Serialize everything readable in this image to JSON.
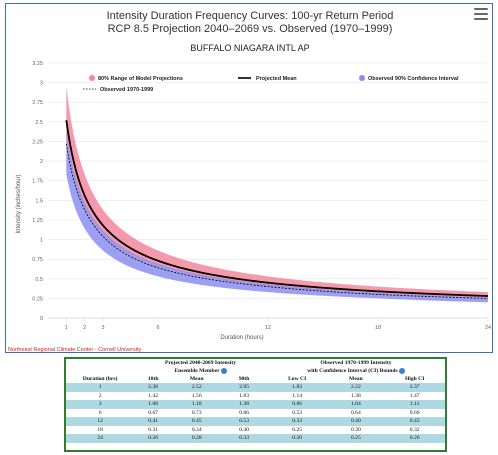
{
  "chart": {
    "title_line1": "Intensity Duration Frequency Curves: 100-yr Return Period",
    "title_line2": "RCP 8.5 Projection 2040–2069 vs. Observed (1970–1999)",
    "subtitle": "BUFFALO NIAGARA INTL AP",
    "credit": "Northeast Regional Climate Center - Cornell University"
  },
  "chart_data": {
    "type": "line",
    "xlabel": "Duration (hours)",
    "ylabel": "Intensity (inches/hour)",
    "xlim": [
      0,
      24
    ],
    "ylim": [
      0,
      3.25
    ],
    "x_ticks": [
      1,
      2,
      3,
      6,
      12,
      18,
      24
    ],
    "y_ticks": [
      0,
      0.25,
      0.5,
      0.75,
      1,
      1.25,
      1.5,
      1.75,
      2,
      2.25,
      2.5,
      2.75,
      3,
      3.25
    ],
    "y_tick_labels": [
      "0",
      "0.25",
      "0.5",
      "0.75",
      "1",
      "1.25",
      "1.5",
      "1.75",
      "2",
      "2.25",
      "2.5",
      "2.75",
      "3",
      "3.25"
    ],
    "grid": "horizontal",
    "legend_placement": "top",
    "x": [
      1,
      2,
      3,
      6,
      12,
      18,
      24
    ],
    "series": [
      {
        "name": "80% Range of Model Projections",
        "kind": "band",
        "color": "#f3879e",
        "low": [
          2.3,
          1.42,
          1.08,
          0.67,
          0.41,
          0.31,
          0.26
        ],
        "high": [
          2.95,
          1.83,
          1.38,
          0.86,
          0.53,
          0.4,
          0.33
        ]
      },
      {
        "name": "Projected Mean",
        "kind": "line",
        "color": "#000000",
        "values": [
          2.52,
          1.56,
          1.18,
          0.73,
          0.45,
          0.34,
          0.28
        ]
      },
      {
        "name": "Observed 90% Confidence Interval",
        "kind": "band",
        "color": "#8b8ef0",
        "low": [
          1.83,
          1.14,
          0.86,
          0.53,
          0.33,
          0.25,
          0.2
        ],
        "high": [
          2.37,
          1.47,
          1.11,
          0.69,
          0.43,
          0.32,
          0.26
        ]
      },
      {
        "name": "Observed 1970-1999",
        "kind": "dashed",
        "color": "#000000",
        "values": [
          2.22,
          1.38,
          1.04,
          0.64,
          0.4,
          0.3,
          0.25
        ]
      }
    ]
  },
  "menu_icon": "hamburger-icon",
  "table": {
    "group1": "Projected 2040-2069 Intensity",
    "group1_sub": "Ensemble Member",
    "group2": "Observed 1970-1999 Intensity",
    "group2_sub": "with Confidence Interval (CI) Bounds",
    "headers": [
      "Duration (hrs)",
      "10th",
      "Mean",
      "90th",
      "Low CI",
      "Mean",
      "High CI"
    ],
    "rows": [
      [
        "1",
        "2.30",
        "2.52",
        "2.95",
        "1.83",
        "2.22",
        "2.37"
      ],
      [
        "2",
        "1.42",
        "1.56",
        "1.83",
        "1.14",
        "1.38",
        "1.47"
      ],
      [
        "3",
        "1.08",
        "1.18",
        "1.38",
        "0.86",
        "1.04",
        "1.11"
      ],
      [
        "6",
        "0.67",
        "0.73",
        "0.86",
        "0.53",
        "0.64",
        "0.69"
      ],
      [
        "12",
        "0.41",
        "0.45",
        "0.53",
        "0.33",
        "0.40",
        "0.43"
      ],
      [
        "18",
        "0.31",
        "0.34",
        "0.40",
        "0.25",
        "0.30",
        "0.32"
      ],
      [
        "24",
        "0.26",
        "0.28",
        "0.33",
        "0.20",
        "0.25",
        "0.26"
      ]
    ]
  }
}
